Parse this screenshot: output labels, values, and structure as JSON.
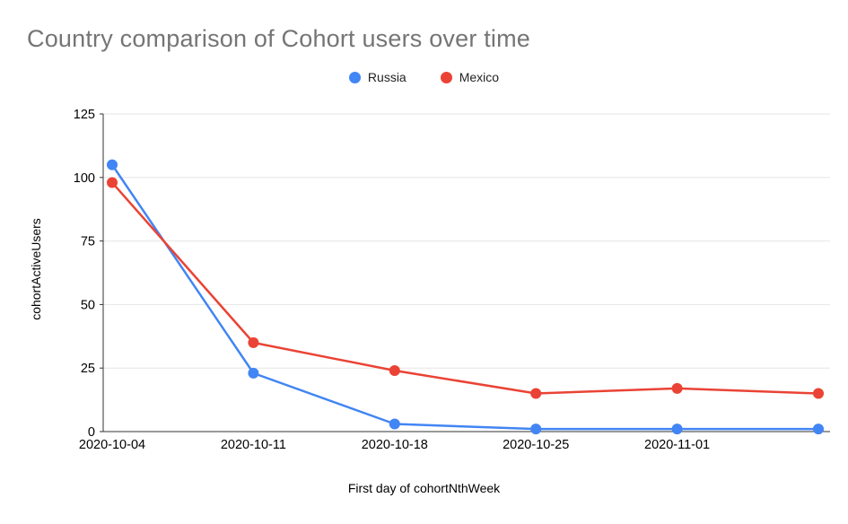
{
  "chart_data": {
    "type": "line",
    "title": "Country comparison of Cohort users over time",
    "xlabel": "First day of cohortNthWeek",
    "ylabel": "cohortActiveUsers",
    "x_labels": [
      "2020-10-04",
      "2020-10-11",
      "2020-10-18",
      "2020-10-25",
      "2020-11-01",
      ""
    ],
    "series": [
      {
        "name": "Russia",
        "color": "#4285f4",
        "values": [
          105,
          23,
          3,
          1,
          1,
          1
        ]
      },
      {
        "name": "Mexico",
        "color": "#ea4335",
        "values": [
          98,
          35,
          24,
          15,
          17,
          15
        ]
      }
    ],
    "ylim": [
      0,
      125
    ],
    "yticks": [
      0,
      25,
      50,
      75,
      100,
      125
    ],
    "grid": true,
    "legend_position": "top-center",
    "colors": {
      "title_gray": "#757575",
      "gridline": "#e6e6e6",
      "axis": "#333333",
      "tick_text": "#000000"
    }
  }
}
